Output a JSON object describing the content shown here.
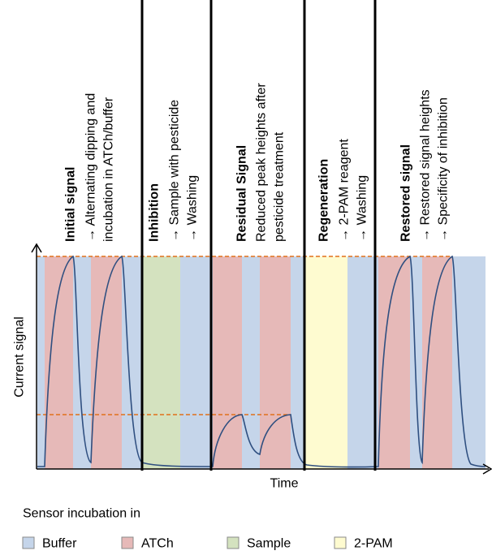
{
  "sections": [
    {
      "title": "Initial signal",
      "lines": [
        "→ Alternating dipping and",
        "incubation in ATCh/buffer"
      ]
    },
    {
      "title": "Inhibition",
      "lines": [
        "→ Sample with pesticide",
        "→ Washing"
      ]
    },
    {
      "title": "Residual Signal",
      "lines": [
        "Reduced peak heights after",
        "pesticide treatment"
      ]
    },
    {
      "title": "Regeneration",
      "lines": [
        "→ 2-PAM reagent",
        "→ Washing"
      ]
    },
    {
      "title": "Restored signal",
      "lines": [
        "→ Restored signal heights",
        "→ Specificity of inhibition"
      ]
    }
  ],
  "axes": {
    "y_label": "Current signal",
    "x_label": "Time"
  },
  "legend": {
    "title": "Sensor incubation in",
    "items": [
      {
        "label": "Buffer",
        "color": "#c5d5ea"
      },
      {
        "label": "ATCh",
        "color": "#e6b9b8"
      },
      {
        "label": "Sample",
        "color": "#d4e2bf"
      },
      {
        "label": "2-PAM",
        "color": "#fefbd0"
      }
    ]
  }
}
